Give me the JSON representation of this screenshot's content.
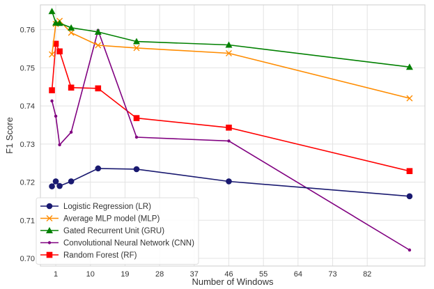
{
  "chart_data": {
    "type": "line",
    "title": "",
    "xlabel": "Number of Windows",
    "ylabel": "F1 Score",
    "xlim": [
      -3,
      97
    ],
    "ylim": [
      0.698,
      0.7665
    ],
    "xticks": [
      1,
      10,
      19,
      28,
      37,
      46,
      55,
      64,
      73,
      82
    ],
    "yticks": [
      0.7,
      0.71,
      0.72,
      0.73,
      0.74,
      0.75,
      0.76
    ],
    "ytick_labels": [
      "0.70",
      "0.71",
      "0.72",
      "0.73",
      "0.74",
      "0.75",
      "0.76"
    ],
    "grid": true,
    "legend_position": "lower-left",
    "x": [
      0,
      1,
      2,
      5,
      12,
      22,
      46,
      93
    ],
    "series": [
      {
        "name": "Logistic Regression (LR)",
        "color": "#191970",
        "marker": "circle",
        "values": [
          0.7189,
          0.7202,
          0.719,
          0.7202,
          0.7236,
          0.7234,
          0.7202,
          0.7163
        ]
      },
      {
        "name": "Average MLP model (MLP)",
        "color": "#ff8c00",
        "marker": "x",
        "values": [
          0.7535,
          0.7615,
          0.7623,
          0.7592,
          0.7559,
          0.7552,
          0.7538,
          0.742
        ]
      },
      {
        "name": "Gated Recurrent Unit (GRU)",
        "color": "#008000",
        "marker": "triangle",
        "values": [
          0.7648,
          0.7618,
          0.7617,
          0.7605,
          0.7594,
          0.7569,
          0.756,
          0.7502
        ]
      },
      {
        "name": "Convolutional Neural Network (CNN)",
        "color": "#800080",
        "marker": "dot",
        "values": [
          0.7413,
          0.7373,
          0.7298,
          0.7331,
          0.7598,
          0.7318,
          0.7308,
          0.7022
        ]
      },
      {
        "name": "Random Forest (RF)",
        "color": "#ff0000",
        "marker": "square",
        "values": [
          0.7441,
          0.7563,
          0.7543,
          0.7448,
          0.7446,
          0.7368,
          0.7343,
          0.7229
        ]
      }
    ]
  }
}
